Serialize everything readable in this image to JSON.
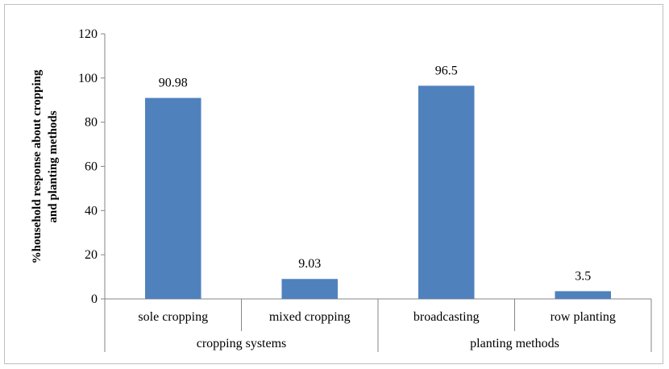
{
  "chart_data": {
    "type": "bar",
    "title": "",
    "ylabel_lines": [
      "%household response about cropping",
      "and planting methods"
    ],
    "ylim": [
      0,
      120
    ],
    "yticks": [
      0,
      20,
      40,
      60,
      80,
      100,
      120
    ],
    "grid": false,
    "legend": "none",
    "bar_color": "#4f81bd",
    "categories": [
      "sole cropping",
      "mixed cropping",
      "broadcasting",
      "row planting"
    ],
    "groups": [
      {
        "label": "cropping systems",
        "members": [
          "sole cropping",
          "mixed cropping"
        ]
      },
      {
        "label": "planting methods",
        "members": [
          "broadcasting",
          "row planting"
        ]
      }
    ],
    "values": [
      90.98,
      9.03,
      96.5,
      3.5
    ],
    "value_labels": [
      "90.98",
      "9.03",
      "96.5",
      "3.5"
    ]
  }
}
